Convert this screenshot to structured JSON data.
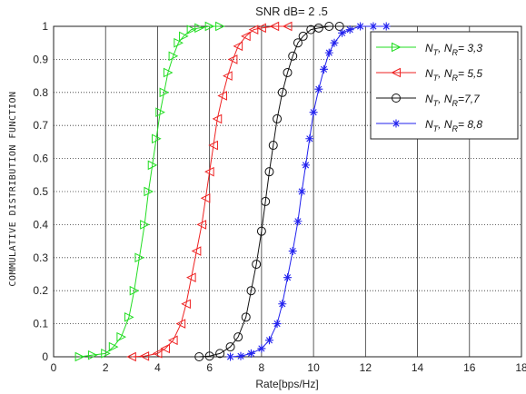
{
  "chart_data": {
    "type": "line",
    "title": "SNR  dB= 2 .5",
    "xlabel": "Rate[bps/Hz]",
    "ylabel": "COMMULATIVE DISTRIBUTION FUNCTION",
    "xlim": [
      0,
      18
    ],
    "ylim": [
      0,
      1
    ],
    "x_ticks": [
      "0",
      "2",
      "4",
      "6",
      "8",
      "10",
      "12",
      "14",
      "16",
      "18"
    ],
    "y_ticks": [
      "0",
      "0.1",
      "0.2",
      "0.3",
      "0.4",
      "0.5",
      "0.6",
      "0.7",
      "0.8",
      "0.9",
      "1"
    ],
    "grid": true,
    "legend_position": "top-right",
    "series": [
      {
        "name": "N_T, N_R= 3,3",
        "legend_main": "N",
        "legend_sub1": "T",
        "legend_mid": ", N",
        "legend_sub2": "R",
        "legend_tail": "=  3,3",
        "color": "#22dd22",
        "marker": "triangle-right",
        "x": [
          1.0,
          1.5,
          2.0,
          2.3,
          2.6,
          2.9,
          3.1,
          3.3,
          3.5,
          3.65,
          3.8,
          3.95,
          4.1,
          4.25,
          4.4,
          4.6,
          4.8,
          5.0,
          5.3,
          5.6,
          6.0,
          6.4
        ],
        "y": [
          0.0,
          0.005,
          0.01,
          0.03,
          0.06,
          0.12,
          0.2,
          0.3,
          0.4,
          0.5,
          0.58,
          0.66,
          0.74,
          0.8,
          0.86,
          0.91,
          0.95,
          0.97,
          0.99,
          0.995,
          1.0,
          1.0
        ]
      },
      {
        "name": "N_T, N_R= 5,5",
        "legend_main": "N",
        "legend_sub1": "T",
        "legend_mid": ", N",
        "legend_sub2": "R",
        "legend_tail": "=  5,5",
        "color": "#ee2222",
        "marker": "triangle-left",
        "x": [
          3.0,
          3.5,
          4.0,
          4.3,
          4.6,
          4.9,
          5.1,
          5.3,
          5.5,
          5.7,
          5.85,
          6.0,
          6.15,
          6.3,
          6.5,
          6.7,
          6.9,
          7.1,
          7.4,
          7.7,
          8.0,
          8.5,
          9.0
        ],
        "y": [
          0.0,
          0.002,
          0.01,
          0.025,
          0.05,
          0.1,
          0.16,
          0.24,
          0.32,
          0.4,
          0.48,
          0.56,
          0.64,
          0.72,
          0.79,
          0.85,
          0.9,
          0.94,
          0.97,
          0.99,
          0.995,
          1.0,
          1.0
        ]
      },
      {
        "name": "N_T, N_R= 7,7",
        "legend_main": "N",
        "legend_sub1": "T",
        "legend_mid": ", N",
        "legend_sub2": "R",
        "legend_tail": "=7,7",
        "color": "#111111",
        "marker": "circle",
        "x": [
          5.6,
          6.0,
          6.4,
          6.8,
          7.1,
          7.4,
          7.6,
          7.8,
          8.0,
          8.15,
          8.3,
          8.45,
          8.6,
          8.8,
          9.0,
          9.2,
          9.4,
          9.6,
          9.9,
          10.2,
          10.6,
          11.0
        ],
        "y": [
          0.0,
          0.002,
          0.01,
          0.03,
          0.06,
          0.12,
          0.2,
          0.28,
          0.38,
          0.47,
          0.56,
          0.64,
          0.72,
          0.8,
          0.86,
          0.91,
          0.95,
          0.97,
          0.99,
          0.995,
          1.0,
          1.0
        ]
      },
      {
        "name": "N_T, N_R= 8,8",
        "legend_main": "N",
        "legend_sub1": "T",
        "legend_mid": ", N",
        "legend_sub2": "R",
        "legend_tail": "=  8,8",
        "color": "#2222ee",
        "marker": "star",
        "x": [
          6.8,
          7.2,
          7.6,
          8.0,
          8.3,
          8.6,
          8.8,
          9.0,
          9.2,
          9.4,
          9.55,
          9.7,
          9.85,
          10.0,
          10.2,
          10.4,
          10.6,
          10.8,
          11.1,
          11.4,
          11.8,
          12.3,
          12.8
        ],
        "y": [
          0.0,
          0.002,
          0.01,
          0.025,
          0.05,
          0.1,
          0.16,
          0.24,
          0.32,
          0.41,
          0.5,
          0.58,
          0.66,
          0.74,
          0.81,
          0.87,
          0.92,
          0.95,
          0.98,
          0.99,
          1.0,
          1.0,
          1.0
        ]
      }
    ]
  }
}
